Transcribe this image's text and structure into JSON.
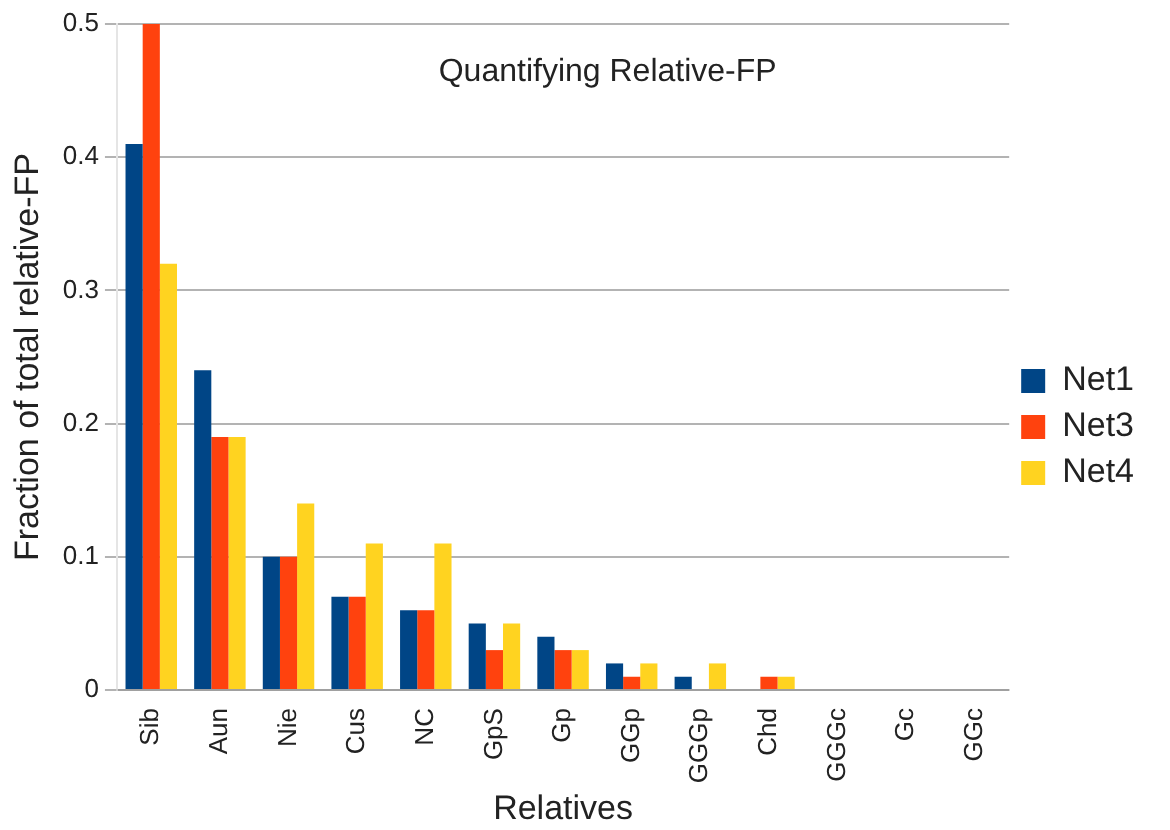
{
  "chart_data": {
    "type": "bar",
    "title": "Quantifying Relative-FP",
    "xlabel": "Relatives",
    "ylabel": "Fraction of total relative-FP",
    "categories": [
      "Sib",
      "Aun",
      "Nie",
      "Cus",
      "NC",
      "GpS",
      "Gp",
      "GGp",
      "GGGp",
      "Chd",
      "GGGc",
      "Gc",
      "GGc"
    ],
    "series": [
      {
        "name": "Net1",
        "color": "#004586",
        "values": [
          0.41,
          0.24,
          0.1,
          0.07,
          0.06,
          0.05,
          0.04,
          0.02,
          0.01,
          0,
          0,
          0,
          0
        ]
      },
      {
        "name": "Net3",
        "color": "#ff420e",
        "values": [
          0.5,
          0.19,
          0.1,
          0.07,
          0.06,
          0.03,
          0.03,
          0.01,
          0,
          0.01,
          0,
          0,
          0
        ]
      },
      {
        "name": "Net4",
        "color": "#ffd320",
        "values": [
          0.32,
          0.19,
          0.14,
          0.11,
          0.11,
          0.05,
          0.03,
          0.02,
          0.02,
          0.01,
          0,
          0,
          0
        ]
      }
    ],
    "ylim": [
      0,
      0.5
    ],
    "yticks": [
      0,
      0.1,
      0.2,
      0.3,
      0.4,
      0.5
    ],
    "grid": "y",
    "legend": "right"
  }
}
